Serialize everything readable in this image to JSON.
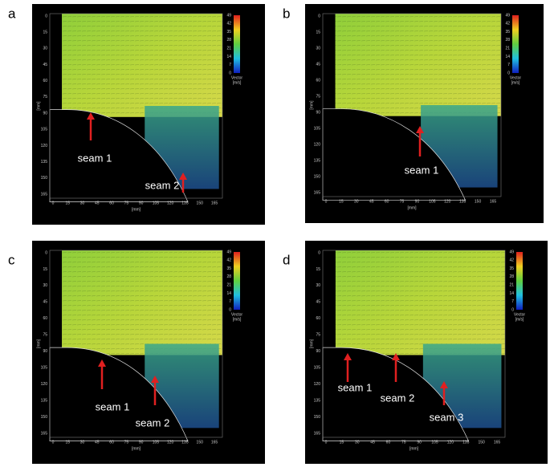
{
  "panels": [
    {
      "label": "a",
      "x_axis": {
        "ticks": [
          0,
          15,
          30,
          45,
          60,
          75,
          90,
          105,
          120,
          135,
          150,
          165
        ],
        "unit": "[mm]"
      },
      "y_axis": {
        "ticks": [
          0,
          15,
          30,
          45,
          60,
          75,
          90,
          105,
          120,
          135,
          150,
          165
        ],
        "unit": "[mm]"
      },
      "colorbar": {
        "ticks": [
          49,
          42,
          35,
          28,
          21,
          14,
          7,
          0
        ],
        "title": "Vector",
        "unit": "[m/s]"
      },
      "annotations": [
        "seam 1",
        "seam 2"
      ]
    },
    {
      "label": "b",
      "x_axis": {
        "ticks": [
          0,
          15,
          30,
          45,
          60,
          75,
          90,
          105,
          120,
          135,
          150,
          165
        ],
        "unit": "[mm]"
      },
      "y_axis": {
        "ticks": [
          0,
          15,
          30,
          45,
          60,
          75,
          90,
          105,
          120,
          135,
          150,
          165
        ],
        "unit": "[mm]"
      },
      "colorbar": {
        "ticks": [
          49,
          42,
          35,
          28,
          21,
          14,
          7,
          0
        ],
        "title": "Vector",
        "unit": "[m/s]"
      },
      "annotations": [
        "seam 1"
      ]
    },
    {
      "label": "c",
      "x_axis": {
        "ticks": [
          0,
          15,
          30,
          45,
          60,
          75,
          90,
          105,
          120,
          135,
          150,
          165
        ],
        "unit": "[mm]"
      },
      "y_axis": {
        "ticks": [
          0,
          15,
          30,
          45,
          60,
          75,
          90,
          105,
          120,
          135,
          150,
          165
        ],
        "unit": "[mm]"
      },
      "colorbar": {
        "ticks": [
          49,
          42,
          35,
          28,
          21,
          14,
          7,
          0
        ],
        "title": "Vector",
        "unit": "[m/s]"
      },
      "annotations": [
        "seam 1",
        "seam 2"
      ]
    },
    {
      "label": "d",
      "x_axis": {
        "ticks": [
          0,
          15,
          30,
          45,
          60,
          75,
          90,
          105,
          120,
          135,
          150,
          165
        ],
        "unit": "[mm]"
      },
      "y_axis": {
        "ticks": [
          0,
          15,
          30,
          45,
          60,
          75,
          90,
          105,
          120,
          135,
          150,
          165
        ],
        "unit": "[mm]"
      },
      "colorbar": {
        "ticks": [
          49,
          42,
          35,
          28,
          21,
          14,
          7,
          0
        ],
        "title": "Vector",
        "unit": "[m/s]"
      },
      "annotations": [
        "seam 1",
        "seam 2",
        "seam 3"
      ]
    }
  ]
}
